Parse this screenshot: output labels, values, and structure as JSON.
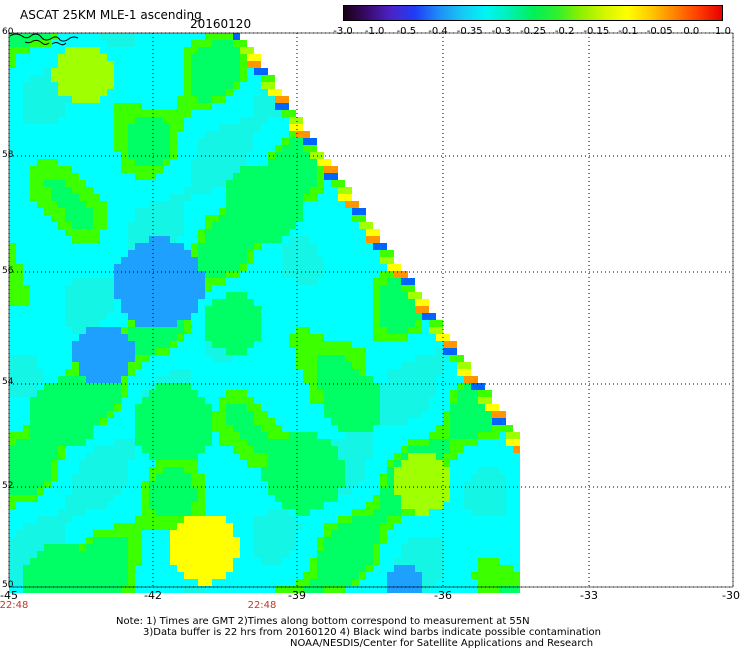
{
  "header": {
    "title": "ASCAT 25KM MLE-1 ascending",
    "date": "20160120"
  },
  "colorbar": {
    "colors": [
      "#1a0014",
      "#3a0a6e",
      "#4b23c8",
      "#1f3cf5",
      "#1f8cf5",
      "#17c8f5",
      "#00f5f5",
      "#00f0b4",
      "#00f05a",
      "#2ef02e",
      "#8cf000",
      "#d2f500",
      "#ffff00",
      "#ffc800",
      "#ff8200",
      "#ff3c00",
      "#e60000"
    ],
    "ticks": [
      "-3.0",
      "-1.0",
      "-0.5",
      "-0.4",
      "-0.35",
      "-0.3",
      "-0.25",
      "-0.2",
      "-0.15",
      "-0.1",
      "-0.05",
      "0.0",
      "1.0"
    ]
  },
  "map": {
    "lon_labels": [
      "-45",
      "-42",
      "-39",
      "-36",
      "-33",
      "-30"
    ],
    "lat_labels": [
      "60",
      "58",
      "56",
      "54",
      "52",
      "50"
    ],
    "time_labels": [
      "22:48",
      "22:48"
    ],
    "data_colors": {
      "cyan": "#00ffff",
      "cyan2": "#14f5e6",
      "green": "#00ff64",
      "green2": "#3cff00",
      "lime": "#a0ff00",
      "yellow": "#ffff00",
      "blue": "#1ea0ff",
      "blue2": "#0064ff",
      "orange": "#ff9600",
      "red": "#ff5000"
    }
  },
  "notes": {
    "line1": "Note: 1) Times are GMT 2)Times along bottom correspond to measurement at 55N",
    "line2": "3)Data buffer is 22 hrs from 20160120 4) Black wind barbs indicate possible contamination",
    "line3": "NOAA/NESDIS/Center for Satellite Applications and Research"
  }
}
